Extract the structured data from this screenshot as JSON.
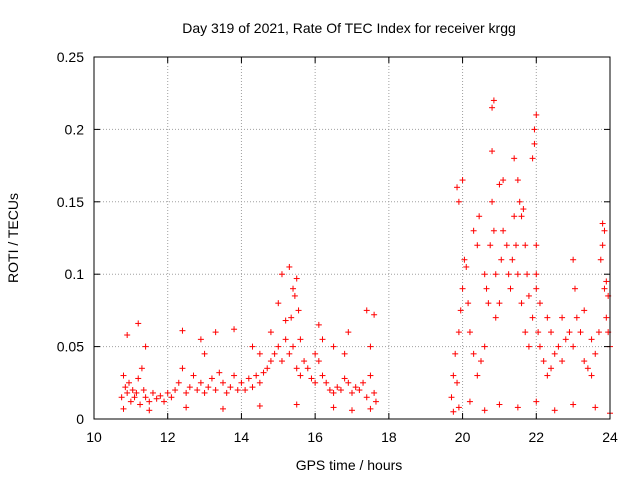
{
  "chart_data": {
    "type": "scatter",
    "title": "Day 319 of 2021, Rate Of TEC Index for receiver krgg",
    "xlabel": "GPS time / hours",
    "ylabel": "ROTI / TECUs",
    "xlim": [
      10,
      24
    ],
    "ylim": [
      0,
      0.25
    ],
    "xticks": [
      10,
      12,
      14,
      16,
      18,
      20,
      22,
      24
    ],
    "xtick_labels": [
      "10",
      "12",
      "14",
      "16",
      "18",
      "20",
      "22",
      "24"
    ],
    "yticks": [
      0,
      0.05,
      0.1,
      0.15,
      0.2,
      0.25
    ],
    "ytick_labels": [
      "0",
      "0.05",
      "0.1",
      "0.15",
      "0.2",
      "0.25"
    ],
    "grid": true,
    "marker": "plus",
    "colors": {
      "series": "#ff0000",
      "grid": "#a0a0a0",
      "axis": "#000000"
    },
    "series": [
      {
        "name": "",
        "points": [
          [
            10.75,
            0.015
          ],
          [
            10.8,
            0.03
          ],
          [
            10.85,
            0.022
          ],
          [
            10.9,
            0.018
          ],
          [
            10.95,
            0.025
          ],
          [
            11.0,
            0.012
          ],
          [
            11.05,
            0.02
          ],
          [
            11.1,
            0.015
          ],
          [
            11.15,
            0.018
          ],
          [
            11.2,
            0.028
          ],
          [
            11.25,
            0.01
          ],
          [
            11.3,
            0.035
          ],
          [
            11.35,
            0.02
          ],
          [
            11.4,
            0.015
          ],
          [
            11.5,
            0.012
          ],
          [
            11.6,
            0.018
          ],
          [
            11.7,
            0.014
          ],
          [
            11.8,
            0.016
          ],
          [
            11.9,
            0.012
          ],
          [
            12.0,
            0.018
          ],
          [
            12.1,
            0.015
          ],
          [
            12.2,
            0.02
          ],
          [
            12.3,
            0.025
          ],
          [
            12.4,
            0.035
          ],
          [
            12.5,
            0.018
          ],
          [
            12.6,
            0.022
          ],
          [
            12.7,
            0.03
          ],
          [
            12.8,
            0.02
          ],
          [
            12.9,
            0.025
          ],
          [
            13.0,
            0.018
          ],
          [
            13.1,
            0.022
          ],
          [
            13.2,
            0.028
          ],
          [
            13.3,
            0.02
          ],
          [
            13.4,
            0.032
          ],
          [
            13.5,
            0.025
          ],
          [
            13.6,
            0.018
          ],
          [
            13.7,
            0.022
          ],
          [
            13.8,
            0.03
          ],
          [
            13.9,
            0.02
          ],
          [
            14.0,
            0.025
          ],
          [
            14.1,
            0.02
          ],
          [
            14.2,
            0.028
          ],
          [
            14.3,
            0.022
          ],
          [
            14.4,
            0.03
          ],
          [
            14.5,
            0.025
          ],
          [
            14.6,
            0.032
          ],
          [
            14.7,
            0.035
          ],
          [
            14.8,
            0.04
          ],
          [
            14.9,
            0.045
          ],
          [
            15.0,
            0.05
          ],
          [
            15.1,
            0.04
          ],
          [
            15.2,
            0.055
          ],
          [
            15.3,
            0.045
          ],
          [
            15.4,
            0.05
          ],
          [
            15.5,
            0.035
          ],
          [
            15.6,
            0.03
          ],
          [
            15.7,
            0.04
          ],
          [
            15.8,
            0.035
          ],
          [
            15.9,
            0.028
          ],
          [
            16.0,
            0.025
          ],
          [
            16.1,
            0.04
          ],
          [
            16.2,
            0.03
          ],
          [
            16.3,
            0.025
          ],
          [
            16.4,
            0.02
          ],
          [
            16.5,
            0.018
          ],
          [
            16.6,
            0.022
          ],
          [
            16.7,
            0.02
          ],
          [
            16.8,
            0.028
          ],
          [
            16.9,
            0.025
          ],
          [
            17.0,
            0.018
          ],
          [
            17.1,
            0.022
          ],
          [
            17.2,
            0.02
          ],
          [
            17.3,
            0.025
          ],
          [
            17.4,
            0.015
          ],
          [
            17.5,
            0.03
          ],
          [
            17.6,
            0.018
          ],
          [
            17.65,
            0.012
          ],
          [
            10.9,
            0.058
          ],
          [
            11.2,
            0.066
          ],
          [
            11.4,
            0.05
          ],
          [
            12.4,
            0.061
          ],
          [
            12.9,
            0.055
          ],
          [
            13.3,
            0.06
          ],
          [
            13.8,
            0.062
          ],
          [
            14.3,
            0.05
          ],
          [
            14.8,
            0.06
          ],
          [
            15.0,
            0.08
          ],
          [
            15.1,
            0.1
          ],
          [
            15.3,
            0.105
          ],
          [
            15.4,
            0.09
          ],
          [
            15.5,
            0.097
          ],
          [
            15.45,
            0.085
          ],
          [
            15.35,
            0.07
          ],
          [
            15.55,
            0.075
          ],
          [
            15.2,
            0.068
          ],
          [
            15.6,
            0.055
          ],
          [
            16.1,
            0.065
          ],
          [
            16.2,
            0.055
          ],
          [
            16.5,
            0.05
          ],
          [
            16.9,
            0.06
          ],
          [
            17.4,
            0.075
          ],
          [
            17.6,
            0.072
          ],
          [
            17.5,
            0.05
          ],
          [
            16.8,
            0.045
          ],
          [
            16.0,
            0.045
          ],
          [
            14.5,
            0.045
          ],
          [
            13.0,
            0.045
          ],
          [
            19.7,
            0.015
          ],
          [
            19.75,
            0.03
          ],
          [
            19.8,
            0.045
          ],
          [
            19.85,
            0.025
          ],
          [
            19.9,
            0.06
          ],
          [
            19.95,
            0.075
          ],
          [
            20.0,
            0.09
          ],
          [
            20.05,
            0.11
          ],
          [
            20.1,
            0.105
          ],
          [
            20.15,
            0.08
          ],
          [
            20.2,
            0.06
          ],
          [
            20.3,
            0.045
          ],
          [
            20.4,
            0.03
          ],
          [
            20.5,
            0.04
          ],
          [
            20.6,
            0.05
          ],
          [
            20.7,
            0.08
          ],
          [
            20.75,
            0.12
          ],
          [
            20.8,
            0.15
          ],
          [
            20.85,
            0.13
          ],
          [
            20.9,
            0.1
          ],
          [
            21.0,
            0.08
          ],
          [
            21.05,
            0.11
          ],
          [
            21.1,
            0.13
          ],
          [
            21.2,
            0.12
          ],
          [
            21.25,
            0.1
          ],
          [
            21.3,
            0.09
          ],
          [
            21.35,
            0.11
          ],
          [
            21.4,
            0.14
          ],
          [
            21.45,
            0.12
          ],
          [
            21.5,
            0.1
          ],
          [
            21.6,
            0.08
          ],
          [
            21.7,
            0.06
          ],
          [
            21.8,
            0.05
          ],
          [
            21.9,
            0.07
          ],
          [
            22.0,
            0.09
          ],
          [
            22.05,
            0.06
          ],
          [
            22.1,
            0.05
          ],
          [
            22.2,
            0.04
          ],
          [
            22.3,
            0.03
          ],
          [
            22.4,
            0.035
          ],
          [
            22.5,
            0.045
          ],
          [
            22.6,
            0.05
          ],
          [
            22.7,
            0.04
          ],
          [
            22.8,
            0.055
          ],
          [
            22.9,
            0.06
          ],
          [
            23.0,
            0.05
          ],
          [
            23.1,
            0.07
          ],
          [
            23.2,
            0.06
          ],
          [
            23.3,
            0.04
          ],
          [
            23.4,
            0.035
          ],
          [
            23.5,
            0.03
          ],
          [
            23.6,
            0.045
          ],
          [
            23.7,
            0.06
          ],
          [
            23.75,
            0.11
          ],
          [
            23.8,
            0.12
          ],
          [
            23.85,
            0.09
          ],
          [
            23.9,
            0.07
          ],
          [
            23.95,
            0.06
          ],
          [
            24.0,
            0.05
          ],
          [
            19.85,
            0.16
          ],
          [
            19.9,
            0.15
          ],
          [
            20.0,
            0.165
          ],
          [
            20.8,
            0.215
          ],
          [
            20.85,
            0.22
          ],
          [
            20.8,
            0.185
          ],
          [
            21.4,
            0.18
          ],
          [
            21.5,
            0.165
          ],
          [
            21.1,
            0.165
          ],
          [
            21.0,
            0.162
          ],
          [
            21.55,
            0.15
          ],
          [
            21.6,
            0.14
          ],
          [
            21.65,
            0.145
          ],
          [
            21.95,
            0.2
          ],
          [
            22.0,
            0.21
          ],
          [
            21.95,
            0.19
          ],
          [
            21.9,
            0.18
          ],
          [
            22.0,
            0.1
          ],
          [
            22.1,
            0.08
          ],
          [
            22.0,
            0.12
          ],
          [
            23.0,
            0.11
          ],
          [
            23.05,
            0.09
          ],
          [
            23.8,
            0.135
          ],
          [
            23.85,
            0.13
          ],
          [
            23.9,
            0.095
          ],
          [
            23.95,
            0.085
          ],
          [
            23.5,
            0.055
          ],
          [
            22.7,
            0.07
          ],
          [
            22.4,
            0.06
          ],
          [
            20.3,
            0.13
          ],
          [
            20.4,
            0.12
          ],
          [
            20.45,
            0.14
          ],
          [
            20.6,
            0.1
          ],
          [
            20.65,
            0.09
          ],
          [
            20.9,
            0.07
          ],
          [
            21.7,
            0.12
          ],
          [
            21.75,
            0.1
          ],
          [
            21.8,
            0.085
          ],
          [
            22.3,
            0.07
          ],
          [
            23.3,
            0.075
          ],
          [
            19.75,
            0.005
          ],
          [
            19.9,
            0.008
          ],
          [
            20.2,
            0.012
          ],
          [
            20.6,
            0.006
          ],
          [
            21.0,
            0.01
          ],
          [
            21.5,
            0.008
          ],
          [
            22.0,
            0.012
          ],
          [
            22.5,
            0.006
          ],
          [
            23.0,
            0.01
          ],
          [
            23.6,
            0.008
          ],
          [
            24.0,
            0.004
          ],
          [
            10.8,
            0.007
          ],
          [
            11.5,
            0.006
          ],
          [
            12.5,
            0.008
          ],
          [
            13.5,
            0.007
          ],
          [
            14.5,
            0.009
          ],
          [
            15.5,
            0.01
          ],
          [
            16.5,
            0.008
          ],
          [
            17.5,
            0.007
          ],
          [
            17.0,
            0.006
          ]
        ]
      }
    ]
  }
}
